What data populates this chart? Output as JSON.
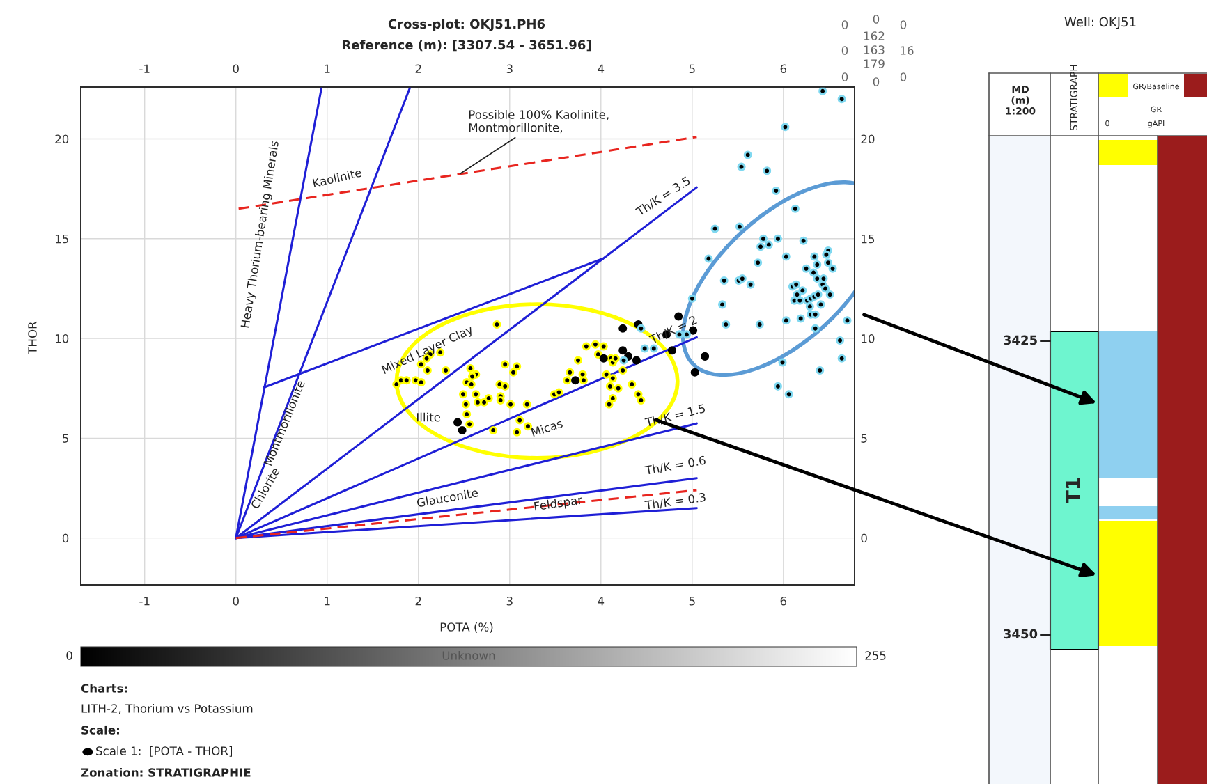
{
  "chart_data": [
    {
      "type": "scatter",
      "title": "Cross-plot: OKJ51.PH6",
      "subtitle": "Reference (m): [3307.54 - 3651.96]",
      "xlabel": "POTA (%)",
      "ylabel": "THOR",
      "xlim": [
        -1.7,
        6.78
      ],
      "ylim": [
        -2.35,
        22.6
      ],
      "xticks": [
        -1,
        0,
        1,
        2,
        3,
        4,
        5,
        6
      ],
      "yticks": [
        0,
        5,
        10,
        15,
        20
      ],
      "x2lim": [
        -1.7,
        6.78
      ],
      "x2ticks": [
        -1,
        0,
        1,
        2,
        3,
        4,
        5,
        6
      ],
      "y2lim": [
        -2.35,
        22.6
      ],
      "y2ticks": [
        0,
        5,
        10,
        15,
        20
      ],
      "grid": true,
      "clabel": "Unknown",
      "clim": [
        0,
        255
      ],
      "cticks": [
        0,
        255
      ],
      "series": [
        {
          "type": "line",
          "color": "#1f1fd6",
          "line_style": "solid",
          "x": [
            0,
            0.94
          ],
          "values": [
            0,
            22.6
          ]
        },
        {
          "type": "line",
          "color": "#1f1fd6",
          "line_style": "solid",
          "x": [
            0,
            1.91
          ],
          "values": [
            0,
            22.6
          ]
        },
        {
          "type": "line",
          "color": "#1f1fd6",
          "line_style": "solid",
          "x": [
            0.31,
            4.02
          ],
          "values": [
            7.55,
            14.0
          ]
        },
        {
          "type": "line",
          "color": "#1f1fd6",
          "line_style": "solid",
          "x": [
            0,
            5.05
          ],
          "values": [
            0,
            17.57
          ]
        },
        {
          "type": "line",
          "color": "#1f1fd6",
          "line_style": "solid",
          "x": [
            0,
            5.05
          ],
          "values": [
            0,
            10.06
          ]
        },
        {
          "type": "line",
          "color": "#1f1fd6",
          "line_style": "solid",
          "x": [
            0,
            5.05
          ],
          "values": [
            0,
            5.74
          ]
        },
        {
          "type": "line",
          "color": "#1f1fd6",
          "line_style": "solid",
          "x": [
            0,
            5.05
          ],
          "values": [
            0,
            3.0
          ]
        },
        {
          "type": "line",
          "color": "#1f1fd6",
          "line_style": "solid",
          "x": [
            0,
            5.05
          ],
          "values": [
            0,
            1.5
          ]
        },
        {
          "type": "line",
          "color": "#e8251f",
          "line_style": "dashed",
          "x": [
            0,
            5.05
          ],
          "values": [
            0,
            2.4
          ]
        },
        {
          "type": "line",
          "color": "#e8251f",
          "line_style": "dashed",
          "x": [
            0.03,
            5.05
          ],
          "values": [
            16.5,
            20.1
          ]
        },
        {
          "type": "scatter",
          "color": "#ffff00",
          "marker": "circle",
          "x": [
            2.86,
            2.24,
            2.13,
            2.09,
            2.03,
            2.1,
            2.3,
            1.76,
            1.81,
            1.87,
            1.97,
            2.03,
            2.57,
            2.63,
            2.59,
            2.53,
            2.58,
            2.95,
            3.08,
            3.04,
            2.89,
            2.95,
            2.49,
            2.63,
            2.77,
            2.72,
            2.65,
            2.9,
            2.9,
            2.52,
            2.53,
            2.56,
            3.01,
            3.19,
            3.11,
            3.2,
            2.82,
            3.08,
            3.49,
            3.54,
            3.63,
            3.66,
            3.75,
            3.8,
            3.81,
            3.84,
            3.94,
            4.03,
            3.97,
            4.11,
            4.13,
            4.16,
            4.06,
            4.13,
            4.1,
            4.19,
            4.24,
            4.34,
            4.41,
            4.44,
            4.13,
            4.09
          ],
          "values": [
            10.7,
            9.3,
            9.2,
            9.0,
            8.7,
            8.4,
            8.4,
            7.7,
            7.9,
            7.9,
            7.9,
            7.8,
            8.5,
            8.2,
            8.1,
            7.8,
            7.7,
            8.7,
            8.6,
            8.3,
            7.7,
            7.6,
            7.2,
            7.2,
            7.0,
            6.8,
            6.8,
            7.1,
            6.9,
            6.7,
            6.2,
            5.7,
            6.7,
            6.7,
            5.9,
            5.6,
            5.4,
            5.3,
            7.2,
            7.3,
            7.9,
            8.3,
            8.9,
            8.2,
            7.9,
            9.6,
            9.7,
            9.6,
            9.2,
            9.0,
            8.8,
            9.0,
            8.2,
            8.0,
            7.6,
            7.5,
            8.4,
            7.7,
            7.2,
            6.9,
            7.0,
            6.7
          ]
        },
        {
          "type": "scatter",
          "color": "#000000",
          "marker": "circle",
          "x": [
            2.43,
            2.48,
            3.72,
            4.03,
            4.24,
            4.41,
            4.24,
            4.3,
            4.39,
            4.72,
            4.78,
            4.85,
            5.01,
            5.14,
            5.03
          ],
          "values": [
            5.8,
            5.4,
            7.9,
            9.0,
            10.5,
            10.7,
            9.4,
            9.1,
            8.9,
            10.2,
            9.4,
            11.1,
            10.4,
            9.1,
            8.3
          ]
        },
        {
          "type": "scatter",
          "color": "#7fd8f0",
          "marker": "circle",
          "x": [
            4.25,
            4.48,
            4.58,
            4.44,
            4.86,
            4.94,
            5.0,
            6.43,
            6.64,
            6.02,
            5.61,
            5.54,
            5.82,
            5.92,
            6.13,
            5.25,
            5.52,
            5.78,
            5.94,
            5.75,
            5.84,
            6.22,
            5.72,
            5.18,
            6.03,
            6.34,
            6.49,
            6.47,
            6.37,
            6.49,
            6.54,
            6.25,
            6.33,
            6.37,
            6.44,
            6.43,
            6.46,
            6.51,
            5.35,
            5.51,
            5.55,
            5.64,
            6.1,
            6.14,
            6.21,
            6.15,
            6.12,
            6.18,
            6.26,
            6.3,
            6.34,
            6.38,
            6.41,
            6.29,
            6.3,
            6.35,
            5.33,
            5.37,
            5.74,
            6.03,
            6.19,
            6.35,
            6.7,
            6.62,
            6.64,
            6.4,
            5.99,
            5.94,
            6.06
          ],
          "values": [
            8.9,
            9.5,
            9.5,
            10.5,
            10.2,
            10.2,
            12.0,
            22.4,
            22.0,
            20.6,
            19.2,
            18.6,
            18.4,
            17.4,
            16.5,
            15.5,
            15.6,
            15.0,
            15.0,
            14.6,
            14.7,
            14.9,
            13.8,
            14.0,
            14.1,
            14.1,
            14.4,
            14.2,
            13.7,
            13.8,
            13.5,
            13.5,
            13.3,
            13.0,
            13.0,
            12.7,
            12.5,
            12.2,
            12.9,
            12.9,
            13.0,
            12.7,
            12.6,
            12.7,
            12.4,
            12.2,
            11.9,
            11.9,
            11.9,
            12.0,
            12.1,
            12.2,
            11.7,
            11.6,
            11.2,
            11.2,
            11.7,
            10.7,
            10.7,
            10.9,
            11.0,
            10.5,
            10.9,
            9.9,
            9.0,
            8.4,
            8.8,
            7.6,
            7.2
          ]
        }
      ],
      "annotations": [
        {
          "text": "Possible 100% Kaolinite,\nMontmorillonite,",
          "x": 2.44,
          "y": 18.2
        },
        "Kaolinite",
        "Heavy Thorium-bearing Minerals",
        "Montmorillonite",
        "Chlorite",
        "Mixed Layer Clay",
        "Illite",
        "Micas",
        "Th/K = 3.5",
        "Th/K = 2",
        "Th/K = 1.5",
        "Th/K = 0.6",
        "Th/K = 0.3",
        "Glauconite",
        "Feldspar",
        "0",
        "0",
        "0",
        "162",
        "163",
        "179",
        "0",
        "16",
        "0",
        "0",
        "0",
        "Charts:",
        "LITH-2, Thorium vs Potassium",
        "Scale:",
        "Scale 1:  [POTA - THOR]",
        "Zonation: STRATIGRAPHIE"
      ]
    },
    {
      "type": "other",
      "title": "Well: OKJ51",
      "annotations": [
        "MD\n(m)\n1:200",
        "STRATIGRAPH",
        "GR/Baseline",
        "GR",
        "0",
        "gAPI",
        "3425",
        "3450",
        "T1"
      ]
    }
  ]
}
